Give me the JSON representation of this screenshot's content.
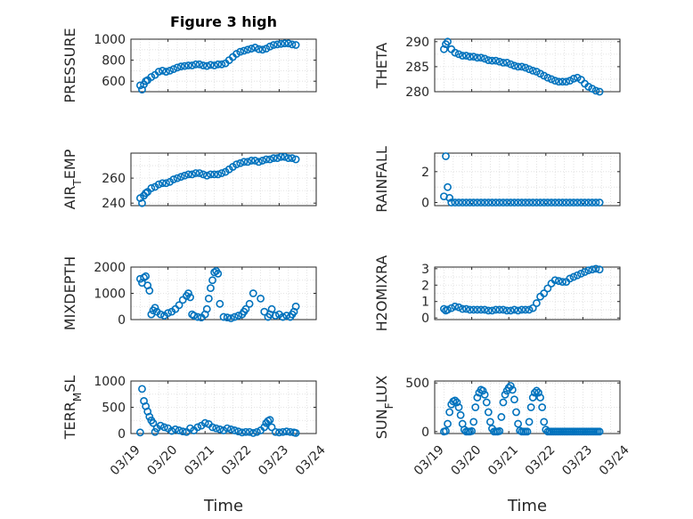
{
  "figure": {
    "title": "Figure 3 high"
  },
  "colors": {
    "marker": "#0072BD",
    "axis": "#262626",
    "grid": "#dcdcdc"
  },
  "chart_data": [
    {
      "type": "scatter",
      "ylabel": "PRESSURE",
      "xlim": [
        0,
        5
      ],
      "ylim": [
        500,
        1000
      ],
      "yticks": [
        600,
        800,
        1000
      ],
      "ytick_labels": [
        "600",
        "800",
        "1000"
      ],
      "x_tick_labels": [],
      "x": [
        0.25,
        0.3,
        0.35,
        0.4,
        0.45,
        0.55,
        0.65,
        0.75,
        0.85,
        0.95,
        1.05,
        1.15,
        1.25,
        1.35,
        1.45,
        1.55,
        1.65,
        1.75,
        1.85,
        1.95,
        2.05,
        2.15,
        2.25,
        2.35,
        2.45,
        2.55,
        2.65,
        2.75,
        2.85,
        2.95,
        3.05,
        3.15,
        3.25,
        3.35,
        3.45,
        3.55,
        3.65,
        3.75,
        3.85,
        3.95,
        4.05,
        4.15,
        4.25,
        4.35,
        4.45
      ],
      "y": [
        560,
        520,
        570,
        600,
        610,
        640,
        660,
        690,
        700,
        690,
        700,
        715,
        730,
        740,
        745,
        750,
        750,
        760,
        760,
        750,
        745,
        755,
        750,
        760,
        760,
        770,
        800,
        830,
        860,
        880,
        890,
        900,
        910,
        920,
        905,
        900,
        910,
        930,
        945,
        950,
        955,
        960,
        960,
        950,
        945
      ]
    },
    {
      "type": "scatter",
      "ylabel": "THETA",
      "xlim": [
        0,
        5
      ],
      "ylim": [
        280,
        290.5
      ],
      "yticks": [
        280,
        285,
        290
      ],
      "ytick_labels": [
        "280",
        "285",
        "290"
      ],
      "x_tick_labels": [],
      "x": [
        0.25,
        0.3,
        0.35,
        0.45,
        0.55,
        0.65,
        0.75,
        0.85,
        0.95,
        1.05,
        1.15,
        1.25,
        1.35,
        1.45,
        1.55,
        1.65,
        1.75,
        1.85,
        1.95,
        2.05,
        2.15,
        2.25,
        2.35,
        2.45,
        2.55,
        2.65,
        2.75,
        2.85,
        2.95,
        3.05,
        3.15,
        3.25,
        3.35,
        3.45,
        3.55,
        3.65,
        3.75,
        3.85,
        3.95,
        4.05,
        4.15,
        4.25,
        4.35,
        4.45
      ],
      "y": [
        288.5,
        289.5,
        290,
        288.5,
        287.8,
        287.5,
        287.2,
        287.2,
        287,
        287,
        286.8,
        286.8,
        286.6,
        286.3,
        286.2,
        286.2,
        286,
        285.8,
        285.8,
        285.5,
        285.2,
        285,
        285,
        284.8,
        284.5,
        284.2,
        284,
        283.6,
        283.2,
        282.8,
        282.5,
        282.2,
        282,
        282,
        282,
        282.2,
        282.6,
        282.8,
        282.4,
        281.6,
        281,
        280.6,
        280.2,
        280
      ]
    },
    {
      "type": "scatter",
      "ylabel": "AIR_TEMP",
      "xlim": [
        0,
        5
      ],
      "ylim": [
        238,
        280
      ],
      "yticks": [
        240,
        260
      ],
      "ytick_labels": [
        "240",
        "260"
      ],
      "x_tick_labels": [],
      "x": [
        0.25,
        0.3,
        0.35,
        0.4,
        0.45,
        0.55,
        0.65,
        0.75,
        0.85,
        0.95,
        1.05,
        1.15,
        1.25,
        1.35,
        1.45,
        1.55,
        1.65,
        1.75,
        1.85,
        1.95,
        2.05,
        2.15,
        2.25,
        2.35,
        2.45,
        2.55,
        2.65,
        2.75,
        2.85,
        2.95,
        3.05,
        3.15,
        3.25,
        3.35,
        3.45,
        3.55,
        3.65,
        3.75,
        3.85,
        3.95,
        4.05,
        4.15,
        4.25,
        4.35,
        4.45
      ],
      "y": [
        244,
        240,
        246,
        248,
        249,
        252,
        253,
        255,
        256,
        256,
        257,
        259,
        260,
        261,
        262,
        263,
        263,
        264,
        264,
        263,
        262,
        263,
        263,
        263,
        264,
        265,
        267,
        269,
        271,
        272,
        273,
        273,
        274,
        274,
        273,
        274,
        275,
        275,
        276,
        276,
        277,
        277,
        276,
        276,
        275
      ]
    },
    {
      "type": "scatter",
      "ylabel": "RAINFALL",
      "xlim": [
        0,
        5
      ],
      "ylim": [
        -0.2,
        3.2
      ],
      "yticks": [
        0,
        2
      ],
      "ytick_labels": [
        "0",
        "2"
      ],
      "x_tick_labels": [],
      "x": [
        0.25,
        0.3,
        0.35,
        0.4,
        0.45,
        0.55,
        0.65,
        0.75,
        0.85,
        0.95,
        1.05,
        1.15,
        1.25,
        1.35,
        1.45,
        1.55,
        1.65,
        1.75,
        1.85,
        1.95,
        2.05,
        2.15,
        2.25,
        2.35,
        2.45,
        2.55,
        2.65,
        2.75,
        2.85,
        2.95,
        3.05,
        3.15,
        3.25,
        3.35,
        3.45,
        3.55,
        3.65,
        3.75,
        3.85,
        3.95,
        4.05,
        4.15,
        4.25,
        4.35,
        4.45
      ],
      "y": [
        0.4,
        3,
        1,
        0.3,
        0,
        0,
        0,
        0,
        0,
        0,
        0,
        0,
        0,
        0,
        0,
        0,
        0,
        0,
        0,
        0,
        0,
        0,
        0,
        0,
        0,
        0,
        0,
        0,
        0,
        0,
        0,
        0,
        0,
        0,
        0,
        0,
        0,
        0,
        0,
        0,
        0,
        0,
        0,
        0,
        0
      ]
    },
    {
      "type": "scatter",
      "ylabel": "MIXDEPTH",
      "xlim": [
        0,
        5
      ],
      "ylim": [
        0,
        2000
      ],
      "yticks": [
        0,
        1000,
        2000
      ],
      "ytick_labels": [
        "0",
        "1000",
        "2000"
      ],
      "x_tick_labels": [],
      "x": [
        0.25,
        0.3,
        0.35,
        0.4,
        0.45,
        0.5,
        0.55,
        0.6,
        0.65,
        0.7,
        0.8,
        0.9,
        1.0,
        1.1,
        1.2,
        1.3,
        1.4,
        1.5,
        1.55,
        1.6,
        1.65,
        1.7,
        1.8,
        1.9,
        2.0,
        2.05,
        2.1,
        2.15,
        2.2,
        2.25,
        2.3,
        2.35,
        2.4,
        2.5,
        2.6,
        2.7,
        2.8,
        2.9,
        3.0,
        3.05,
        3.1,
        3.2,
        3.3,
        3.5,
        3.6,
        3.7,
        3.75,
        3.8,
        3.9,
        4.0,
        4.1,
        4.2,
        4.3,
        4.35,
        4.4,
        4.45
      ],
      "y": [
        1550,
        1400,
        1600,
        1650,
        1300,
        1100,
        200,
        350,
        450,
        300,
        200,
        150,
        250,
        300,
        400,
        550,
        750,
        900,
        1000,
        850,
        200,
        150,
        100,
        80,
        200,
        400,
        800,
        1200,
        1500,
        1800,
        1850,
        1750,
        600,
        100,
        80,
        50,
        100,
        150,
        200,
        300,
        400,
        600,
        1000,
        800,
        300,
        100,
        200,
        400,
        150,
        200,
        100,
        150,
        100,
        200,
        300,
        500
      ]
    },
    {
      "type": "scatter",
      "ylabel": "H2OMIXRA",
      "xlim": [
        0,
        5
      ],
      "ylim": [
        -0.1,
        3.1
      ],
      "yticks": [
        0,
        1,
        2,
        3
      ],
      "ytick_labels": [
        "0",
        "1",
        "2",
        "3"
      ],
      "x_tick_labels": [],
      "x": [
        0.25,
        0.3,
        0.35,
        0.45,
        0.55,
        0.65,
        0.75,
        0.85,
        0.95,
        1.05,
        1.15,
        1.25,
        1.35,
        1.45,
        1.55,
        1.65,
        1.75,
        1.85,
        1.95,
        2.05,
        2.15,
        2.25,
        2.35,
        2.45,
        2.55,
        2.65,
        2.75,
        2.85,
        2.95,
        3.05,
        3.15,
        3.25,
        3.35,
        3.45,
        3.55,
        3.65,
        3.75,
        3.85,
        3.95,
        4.05,
        4.15,
        4.25,
        4.35,
        4.45
      ],
      "y": [
        0.55,
        0.45,
        0.5,
        0.6,
        0.7,
        0.65,
        0.55,
        0.55,
        0.5,
        0.5,
        0.5,
        0.5,
        0.5,
        0.45,
        0.45,
        0.5,
        0.5,
        0.5,
        0.45,
        0.45,
        0.5,
        0.45,
        0.5,
        0.5,
        0.5,
        0.6,
        0.9,
        1.3,
        1.5,
        1.8,
        2.1,
        2.3,
        2.25,
        2.2,
        2.2,
        2.4,
        2.5,
        2.6,
        2.7,
        2.8,
        2.9,
        2.95,
        3,
        2.95
      ]
    },
    {
      "type": "scatter",
      "ylabel": "TERR_MSL",
      "xlim": [
        0,
        5
      ],
      "ylim": [
        0,
        1000
      ],
      "yticks": [
        0,
        500,
        1000
      ],
      "ytick_labels": [
        "0",
        "500",
        "1000"
      ],
      "x_tick_labels": [
        "03/19",
        "03/20",
        "03/21",
        "03/22",
        "03/23",
        "03/24"
      ],
      "xlabel": "Time",
      "x": [
        0.25,
        0.3,
        0.35,
        0.4,
        0.45,
        0.5,
        0.55,
        0.6,
        0.65,
        0.7,
        0.8,
        0.9,
        1.0,
        1.1,
        1.2,
        1.3,
        1.4,
        1.5,
        1.6,
        1.7,
        1.8,
        1.9,
        2.0,
        2.1,
        2.2,
        2.3,
        2.4,
        2.5,
        2.6,
        2.7,
        2.8,
        2.9,
        3.0,
        3.1,
        3.2,
        3.3,
        3.4,
        3.5,
        3.6,
        3.65,
        3.7,
        3.75,
        3.8,
        3.9,
        4.0,
        4.1,
        4.2,
        4.3,
        4.4,
        4.45
      ],
      "y": [
        20,
        850,
        620,
        520,
        420,
        320,
        250,
        200,
        30,
        100,
        150,
        120,
        100,
        50,
        80,
        60,
        40,
        30,
        100,
        60,
        120,
        150,
        200,
        180,
        120,
        100,
        80,
        60,
        100,
        80,
        60,
        40,
        20,
        30,
        30,
        10,
        30,
        60,
        120,
        200,
        240,
        260,
        120,
        30,
        20,
        30,
        40,
        30,
        20,
        10
      ]
    },
    {
      "type": "scatter",
      "ylabel": "SUN_FLUX",
      "xlim": [
        0,
        5
      ],
      "ylim": [
        -20,
        520
      ],
      "yticks": [
        0,
        500
      ],
      "ytick_labels": [
        "0",
        "500"
      ],
      "x_tick_labels": [
        "03/19",
        "03/20",
        "03/21",
        "03/22",
        "03/23",
        "03/24"
      ],
      "xlabel": "Time",
      "x": [
        0.25,
        0.3,
        0.35,
        0.4,
        0.45,
        0.5,
        0.55,
        0.6,
        0.65,
        0.7,
        0.75,
        0.8,
        0.85,
        0.9,
        0.95,
        1.0,
        1.05,
        1.1,
        1.15,
        1.2,
        1.25,
        1.3,
        1.35,
        1.4,
        1.45,
        1.5,
        1.55,
        1.6,
        1.65,
        1.7,
        1.75,
        1.8,
        1.85,
        1.9,
        1.95,
        2.0,
        2.05,
        2.1,
        2.15,
        2.2,
        2.25,
        2.3,
        2.35,
        2.4,
        2.45,
        2.5,
        2.55,
        2.6,
        2.65,
        2.7,
        2.75,
        2.8,
        2.85,
        2.9,
        2.95,
        3.0,
        3.05,
        3.1,
        3.15,
        3.2,
        3.25,
        3.3,
        3.35,
        3.4,
        3.45,
        3.5,
        3.55,
        3.6,
        3.65,
        3.7,
        3.75,
        3.8,
        3.85,
        3.9,
        3.95,
        4.0,
        4.05,
        4.1,
        4.15,
        4.2,
        4.25,
        4.3,
        4.35,
        4.4,
        4.45
      ],
      "y": [
        0,
        5,
        80,
        200,
        280,
        310,
        320,
        300,
        250,
        170,
        80,
        20,
        0,
        0,
        0,
        5,
        100,
        250,
        350,
        400,
        430,
        420,
        380,
        300,
        200,
        100,
        30,
        0,
        0,
        0,
        5,
        150,
        300,
        380,
        420,
        450,
        470,
        430,
        330,
        200,
        80,
        10,
        0,
        0,
        0,
        0,
        100,
        250,
        350,
        400,
        420,
        400,
        350,
        250,
        100,
        20,
        0,
        0,
        0,
        0,
        0,
        0,
        0,
        0,
        0,
        0,
        0,
        0,
        0,
        0,
        0,
        0,
        0,
        0,
        0,
        0,
        0,
        0,
        0,
        0,
        0,
        0,
        0,
        0,
        0
      ]
    }
  ]
}
